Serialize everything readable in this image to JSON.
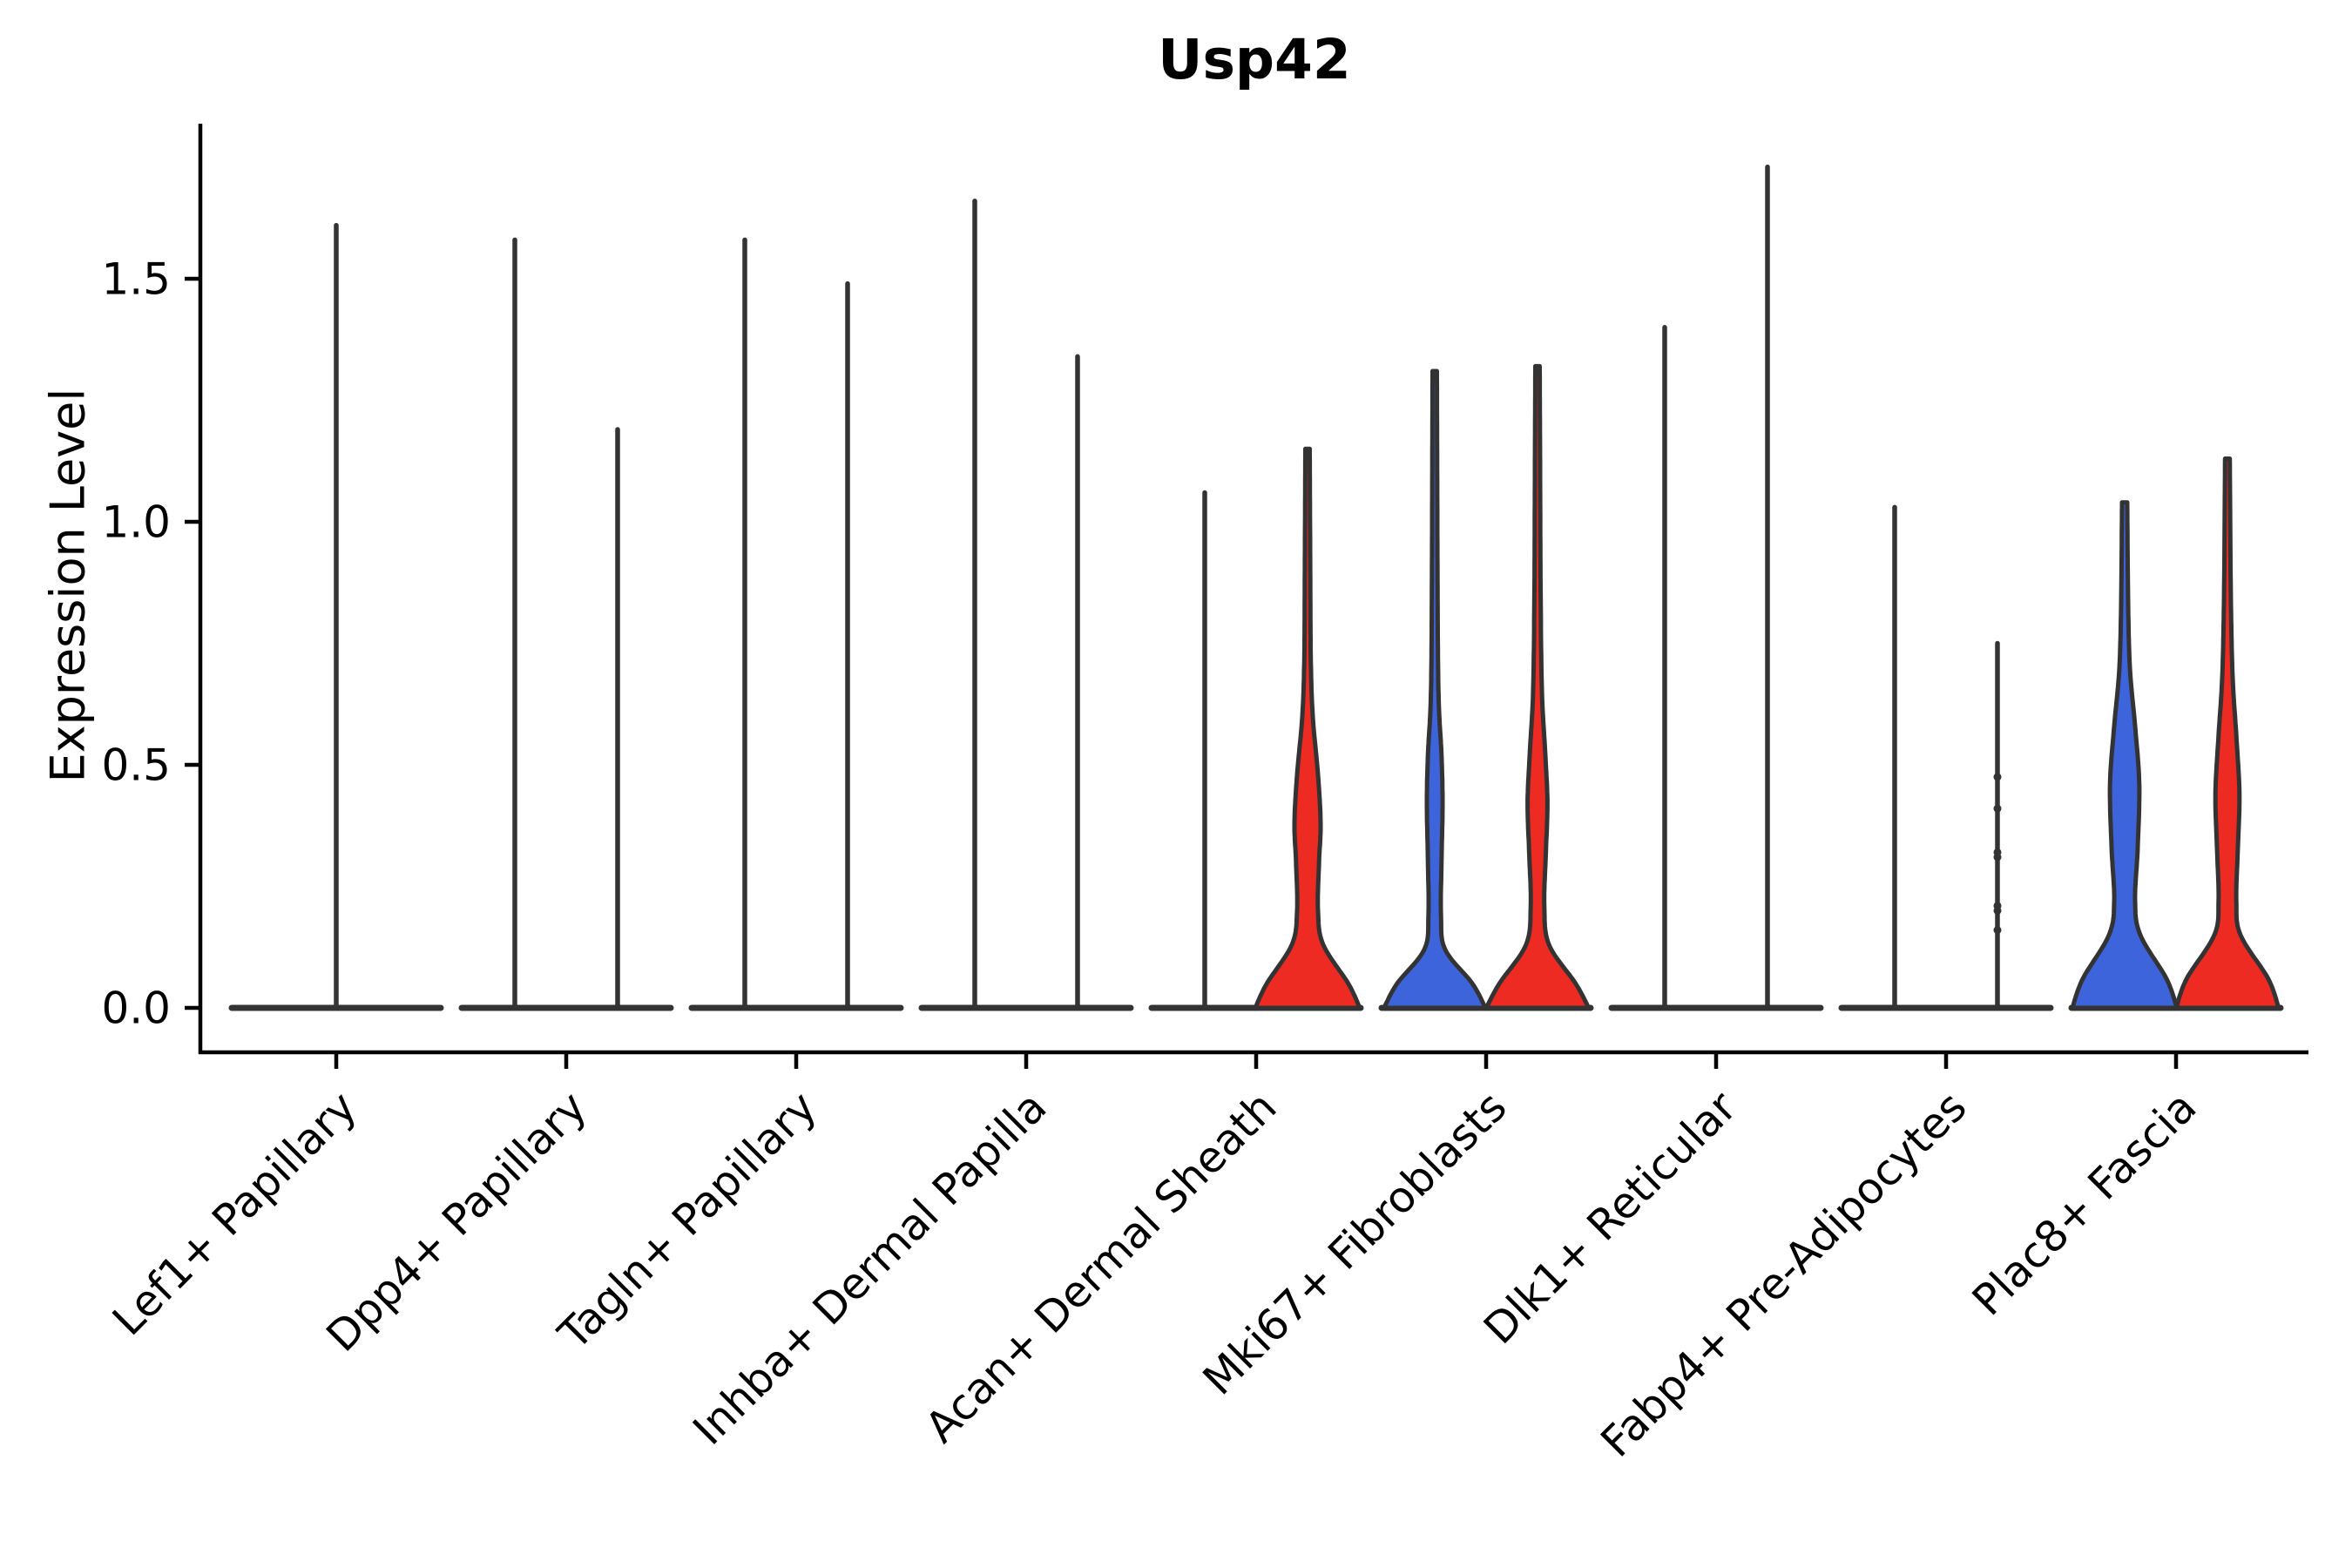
{
  "chart_data": {
    "type": "violin",
    "title": "Usp42",
    "ylabel": "Expression Level",
    "xlabel": "",
    "ylim": [
      -0.09,
      1.83
    ],
    "grid": false,
    "legend": "none",
    "axis_color": "#000000",
    "outline_color": "#333333",
    "split_colors": {
      "blue": "#3E64DC",
      "red": "#EE2B23"
    },
    "yticks": [
      {
        "label": "0.0",
        "value": 0.0
      },
      {
        "label": "0.5",
        "value": 0.5
      },
      {
        "label": "1.0",
        "value": 1.0
      },
      {
        "label": "1.5",
        "value": 1.5
      }
    ],
    "categories": [
      {
        "label": "Lef1+ Papillary",
        "violins": [
          {
            "type": "spike",
            "offset": 0,
            "max": 1.61
          }
        ]
      },
      {
        "label": "Dpp4+ Papillary",
        "violins": [
          {
            "type": "spike",
            "offset": -1,
            "max": 1.58
          },
          {
            "type": "spike",
            "offset": 1,
            "max": 1.19
          }
        ]
      },
      {
        "label": "Tagln+ Papillary",
        "violins": [
          {
            "type": "spike",
            "offset": -1,
            "max": 1.58
          },
          {
            "type": "spike",
            "offset": 1,
            "max": 1.49
          }
        ]
      },
      {
        "label": "Inhba+ Dermal Papilla",
        "violins": [
          {
            "type": "spike",
            "offset": -1,
            "max": 1.66
          },
          {
            "type": "spike",
            "offset": 1,
            "max": 1.34
          }
        ]
      },
      {
        "label": "Acan+ Dermal Sheath",
        "violins": [
          {
            "type": "spike",
            "offset": -1,
            "max": 1.06
          },
          {
            "type": "violin",
            "offset": 1,
            "color": "red",
            "max": 1.15,
            "profile": [
              [
                0,
                1
              ],
              [
                0.05,
                0.78
              ],
              [
                0.13,
                0.3
              ],
              [
                0.2,
                0.2
              ],
              [
                0.3,
                0.22
              ],
              [
                0.38,
                0.25
              ],
              [
                0.48,
                0.2
              ],
              [
                0.6,
                0.1
              ],
              [
                0.72,
                0.062
              ],
              [
                0.9,
                0.052
              ],
              [
                1.15,
                0.042
              ]
            ]
          }
        ]
      },
      {
        "label": "Mki67+ Fibroblasts",
        "violins": [
          {
            "type": "violin",
            "offset": -1,
            "color": "blue",
            "max": 1.31,
            "profile": [
              [
                0,
                0.97
              ],
              [
                0.05,
                0.72
              ],
              [
                0.12,
                0.2
              ],
              [
                0.19,
                0.12
              ],
              [
                0.3,
                0.13
              ],
              [
                0.42,
                0.15
              ],
              [
                0.52,
                0.13
              ],
              [
                0.62,
                0.08
              ],
              [
                0.75,
                0.06
              ],
              [
                1,
                0.05
              ],
              [
                1.31,
                0.042
              ]
            ]
          },
          {
            "type": "violin",
            "offset": 1,
            "color": "red",
            "max": 1.32,
            "profile": [
              [
                0,
                0.98
              ],
              [
                0.05,
                0.73
              ],
              [
                0.13,
                0.22
              ],
              [
                0.21,
                0.13
              ],
              [
                0.32,
                0.16
              ],
              [
                0.42,
                0.19
              ],
              [
                0.52,
                0.15
              ],
              [
                0.65,
                0.085
              ],
              [
                0.85,
                0.06
              ],
              [
                1.1,
                0.05
              ],
              [
                1.32,
                0.042
              ]
            ]
          }
        ]
      },
      {
        "label": "Dlk1+ Reticular",
        "violins": [
          {
            "type": "spike",
            "offset": -1,
            "max": 1.4
          },
          {
            "type": "spike",
            "offset": 1,
            "max": 1.73
          }
        ]
      },
      {
        "label": "Fabp4+ Pre-Adipocytes",
        "violins": [
          {
            "type": "spike",
            "offset": -1,
            "max": 1.03
          },
          {
            "type": "spike",
            "offset": 1,
            "max": 0.75,
            "points": [
              0.475,
              0.41,
              0.32,
              0.31,
              0.21,
              0.2,
              0.16
            ]
          }
        ]
      },
      {
        "label": "Plac8+ Fascia",
        "violins": [
          {
            "type": "violin",
            "offset": -1,
            "color": "blue",
            "max": 1.04,
            "profile": [
              [
                0,
                1
              ],
              [
                0.06,
                0.8
              ],
              [
                0.15,
                0.3
              ],
              [
                0.22,
                0.2
              ],
              [
                0.33,
                0.25
              ],
              [
                0.46,
                0.28
              ],
              [
                0.58,
                0.2
              ],
              [
                0.7,
                0.1
              ],
              [
                0.85,
                0.065
              ],
              [
                1.04,
                0.05
              ]
            ]
          },
          {
            "type": "violin",
            "offset": 1,
            "color": "red",
            "max": 1.13,
            "profile": [
              [
                0,
                0.98
              ],
              [
                0.06,
                0.78
              ],
              [
                0.15,
                0.25
              ],
              [
                0.22,
                0.17
              ],
              [
                0.33,
                0.2
              ],
              [
                0.44,
                0.23
              ],
              [
                0.56,
                0.17
              ],
              [
                0.68,
                0.1
              ],
              [
                0.85,
                0.065
              ],
              [
                1.13,
                0.045
              ]
            ]
          }
        ]
      }
    ]
  }
}
